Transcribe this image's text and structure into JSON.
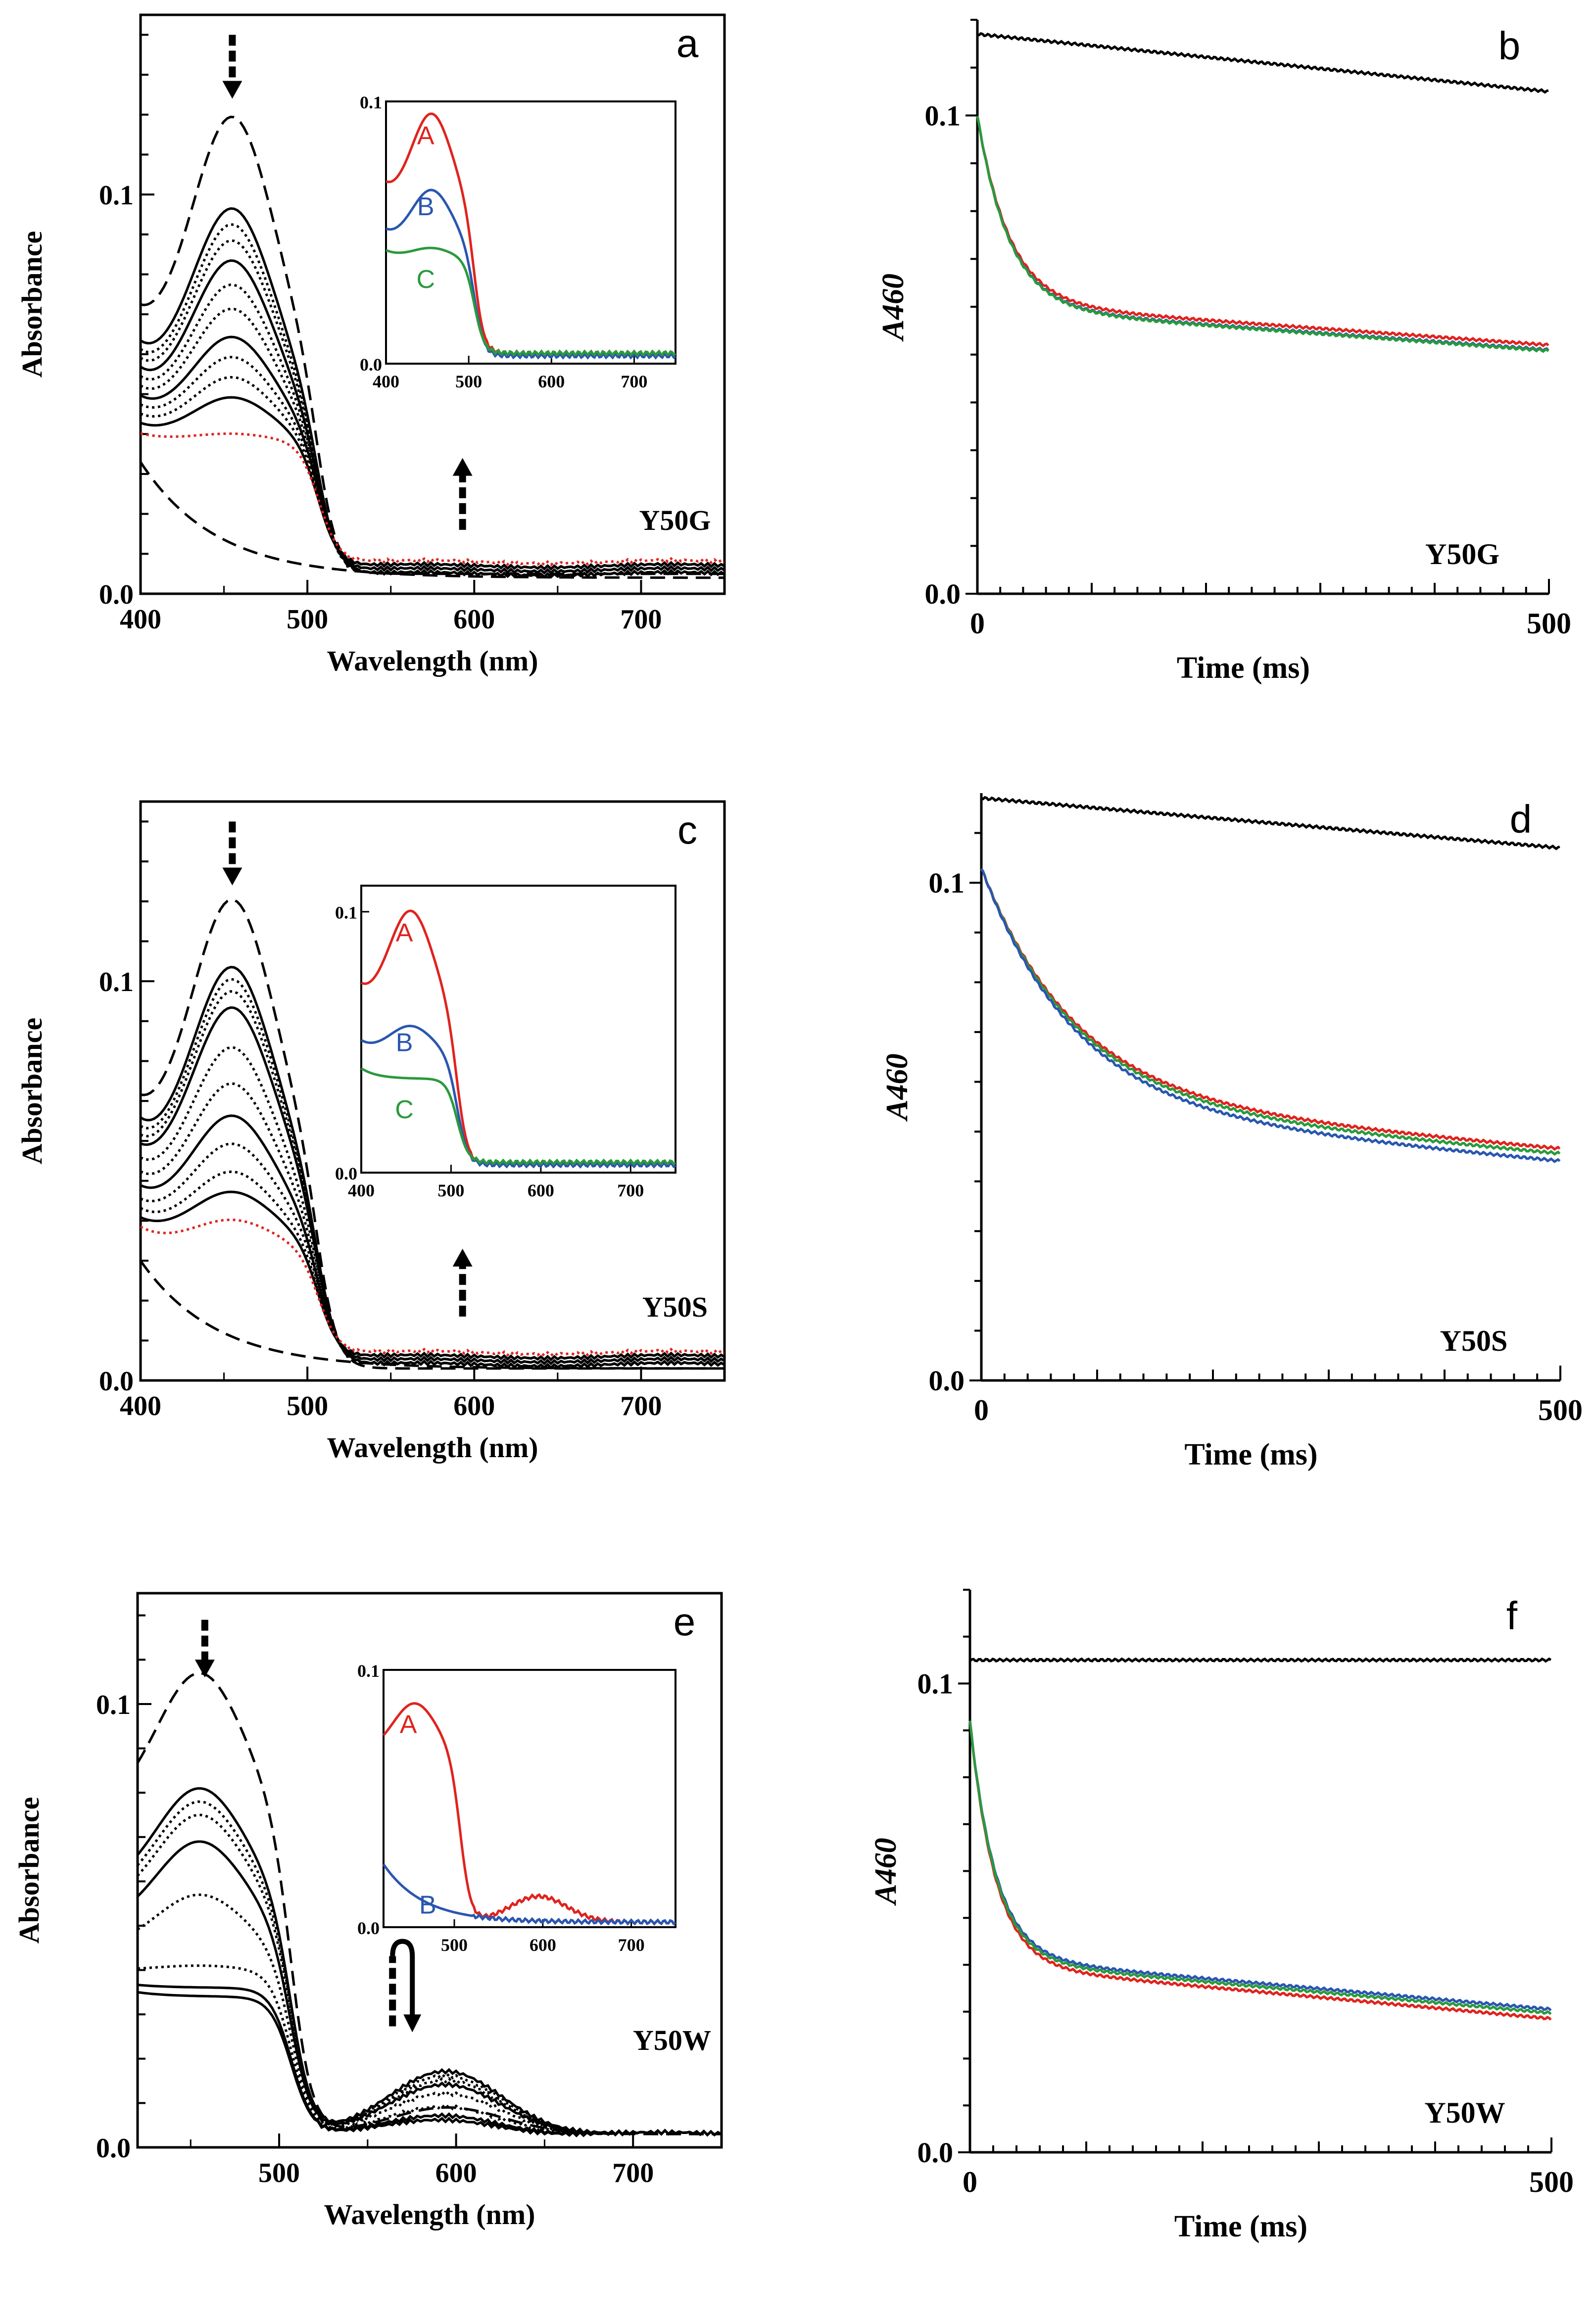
{
  "colors": {
    "axis": "#000000",
    "A": "#e0231e",
    "B": "#2a56b0",
    "C": "#2a9a3c",
    "black": "#000000",
    "red_dotted": "#e0231e"
  },
  "chart_data": [
    {
      "id": "a",
      "type": "line",
      "panel_label": "a",
      "mutant": "Y50G",
      "title": "",
      "xlabel": "Wavelength (nm)",
      "ylabel": "Absorbance",
      "xlim": [
        400,
        750
      ],
      "ylim": [
        0,
        0.145
      ],
      "x_ticks": [
        "400",
        "500",
        "600",
        "700"
      ],
      "y_ticks": [
        "0.0",
        "0.1"
      ],
      "arrows": [
        {
          "x": 455,
          "direction": "down",
          "y_from": 0.14,
          "y_to": 0.124
        },
        {
          "x": 593,
          "direction": "up",
          "y_from": 0.016,
          "y_to": 0.034
        }
      ],
      "series": [
        {
          "name": "initial (dashed)",
          "style": "dashed",
          "peak": 0.119,
          "base400": 0.068,
          "dip": 0.058,
          "tail": 0.005
        },
        {
          "name": "final (dashed)",
          "style": "dashed",
          "decay": true,
          "start": 0.033,
          "tail": 0.004
        },
        {
          "name": "trace 1",
          "style": "solid",
          "peak": 0.096,
          "base400": 0.06,
          "dip": 0.049,
          "tail": 0.005
        },
        {
          "name": "trace 2",
          "style": "dotted",
          "peak": 0.092,
          "base400": 0.058,
          "dip": 0.047,
          "tail": 0.005
        },
        {
          "name": "trace 3",
          "style": "dotted",
          "peak": 0.088,
          "base400": 0.056,
          "dip": 0.046,
          "tail": 0.005
        },
        {
          "name": "trace 4",
          "style": "solid",
          "peak": 0.083,
          "base400": 0.054,
          "dip": 0.044,
          "tail": 0.006
        },
        {
          "name": "trace 5",
          "style": "dotted",
          "peak": 0.077,
          "base400": 0.052,
          "dip": 0.043,
          "tail": 0.006
        },
        {
          "name": "trace 6",
          "style": "dotted",
          "peak": 0.071,
          "base400": 0.05,
          "dip": 0.042,
          "tail": 0.006
        },
        {
          "name": "trace 7",
          "style": "solid",
          "peak": 0.064,
          "base400": 0.048,
          "dip": 0.041,
          "tail": 0.007
        },
        {
          "name": "trace 8",
          "style": "dotted",
          "peak": 0.059,
          "base400": 0.046,
          "dip": 0.04,
          "tail": 0.007
        },
        {
          "name": "trace 9",
          "style": "dotted",
          "peak": 0.054,
          "base400": 0.044,
          "dip": 0.039,
          "tail": 0.007
        },
        {
          "name": "trace 10",
          "style": "solid",
          "peak": 0.049,
          "base400": 0.042,
          "dip": 0.038,
          "tail": 0.007
        },
        {
          "name": "trace 11 (red)",
          "style": "dotted-red",
          "peak": 0.04,
          "base400": 0.04,
          "dip": 0.038,
          "tail": 0.008
        }
      ],
      "inset": {
        "xlim": [
          400,
          750
        ],
        "ylim": [
          0,
          0.1
        ],
        "x_ticks": [
          "400",
          "500",
          "600",
          "700"
        ],
        "y_ticks": [
          "0.0",
          "0.1"
        ],
        "series": [
          {
            "name": "A",
            "label": "A",
            "color": "#e0231e",
            "peak": 0.095,
            "base400": 0.067,
            "dip": 0.06,
            "tail": 0.004
          },
          {
            "name": "B",
            "label": "B",
            "color": "#2a56b0",
            "peak": 0.066,
            "base400": 0.05,
            "dip": 0.045,
            "tail": 0.003
          },
          {
            "name": "C",
            "label": "C",
            "color": "#2a9a3c",
            "peak": 0.044,
            "base400": 0.043,
            "dip": 0.04,
            "tail": 0.004
          }
        ]
      }
    },
    {
      "id": "b",
      "type": "line",
      "panel_label": "b",
      "mutant": "Y50G",
      "xlabel": "Time (ms)",
      "ylabel": "A460",
      "xlim": [
        0,
        500
      ],
      "ylim": [
        0,
        0.12
      ],
      "x_ticks": [
        "0",
        "500"
      ],
      "y_ticks": [
        "0.0",
        "0.1"
      ],
      "series": [
        {
          "name": "black",
          "color": "#000000",
          "start": 0.117,
          "end": 0.105
        },
        {
          "name": "red",
          "color": "#e0231e",
          "start": 0.1,
          "end": 0.052,
          "fast_tau": 28
        },
        {
          "name": "blue",
          "color": "#2a56b0",
          "start": 0.1,
          "end": 0.051,
          "fast_tau": 28
        },
        {
          "name": "green",
          "color": "#2a9a3c",
          "start": 0.1,
          "end": 0.0508,
          "fast_tau": 28
        }
      ]
    },
    {
      "id": "c",
      "type": "line",
      "panel_label": "c",
      "mutant": "Y50S",
      "title": "",
      "xlabel": "Wavelength (nm)",
      "ylabel": "Absorbance",
      "xlim": [
        400,
        750
      ],
      "ylim": [
        0,
        0.145
      ],
      "x_ticks": [
        "400",
        "500",
        "600",
        "700"
      ],
      "y_ticks": [
        "0.0",
        "0.1"
      ],
      "arrows": [
        {
          "x": 455,
          "direction": "down",
          "y_from": 0.14,
          "y_to": 0.124
        },
        {
          "x": 593,
          "direction": "up",
          "y_from": 0.016,
          "y_to": 0.033
        }
      ],
      "series": [
        {
          "name": "initial (dashed)",
          "style": "dashed",
          "peak": 0.12,
          "base400": 0.067,
          "dip": 0.057,
          "tail": 0.003
        },
        {
          "name": "final (dashed)",
          "style": "dashed",
          "decay": true,
          "start": 0.03,
          "tail": 0.003
        },
        {
          "name": "trace 1",
          "style": "solid",
          "peak": 0.103,
          "base400": 0.062,
          "dip": 0.05,
          "tail": 0.004
        },
        {
          "name": "trace 2",
          "style": "dotted",
          "peak": 0.1,
          "base400": 0.06,
          "dip": 0.049,
          "tail": 0.004
        },
        {
          "name": "trace 3",
          "style": "dotted",
          "peak": 0.097,
          "base400": 0.058,
          "dip": 0.048,
          "tail": 0.004
        },
        {
          "name": "trace 4",
          "style": "solid",
          "peak": 0.093,
          "base400": 0.056,
          "dip": 0.047,
          "tail": 0.004
        },
        {
          "name": "trace 5",
          "style": "dotted",
          "peak": 0.083,
          "base400": 0.053,
          "dip": 0.044,
          "tail": 0.005
        },
        {
          "name": "trace 6",
          "style": "dotted",
          "peak": 0.074,
          "base400": 0.05,
          "dip": 0.042,
          "tail": 0.005
        },
        {
          "name": "trace 7",
          "style": "solid",
          "peak": 0.066,
          "base400": 0.047,
          "dip": 0.04,
          "tail": 0.005
        },
        {
          "name": "trace 8",
          "style": "dotted",
          "peak": 0.059,
          "base400": 0.044,
          "dip": 0.038,
          "tail": 0.006
        },
        {
          "name": "trace 9",
          "style": "dotted",
          "peak": 0.052,
          "base400": 0.042,
          "dip": 0.036,
          "tail": 0.006
        },
        {
          "name": "trace 10",
          "style": "solid",
          "peak": 0.047,
          "base400": 0.04,
          "dip": 0.035,
          "tail": 0.006
        },
        {
          "name": "trace 11 (red)",
          "style": "dotted-red",
          "peak": 0.04,
          "base400": 0.038,
          "dip": 0.033,
          "tail": 0.007
        }
      ],
      "inset": {
        "xlim": [
          400,
          750
        ],
        "ylim": [
          0,
          0.11
        ],
        "x_ticks": [
          "400",
          "500",
          "600",
          "700"
        ],
        "y_ticks": [
          "0.0",
          "0.1"
        ],
        "series": [
          {
            "name": "A",
            "label": "A",
            "color": "#e0231e",
            "peak": 0.1,
            "base400": 0.07,
            "dip": 0.062,
            "tail": 0.003
          },
          {
            "name": "B",
            "label": "B",
            "color": "#2a56b0",
            "peak": 0.056,
            "base400": 0.05,
            "dip": 0.045,
            "tail": 0.003
          },
          {
            "name": "C",
            "label": "C",
            "color": "#2a9a3c",
            "peak": 0.036,
            "base400": 0.04,
            "dip": 0.036,
            "tail": 0.004
          }
        ]
      }
    },
    {
      "id": "d",
      "type": "line",
      "panel_label": "d",
      "mutant": "Y50S",
      "xlabel": "Time (ms)",
      "ylabel": "A460",
      "xlim": [
        0,
        500
      ],
      "ylim": [
        0,
        0.118
      ],
      "x_ticks": [
        "0",
        "500"
      ],
      "y_ticks": [
        "0.0",
        "0.1"
      ],
      "series": [
        {
          "name": "black",
          "color": "#000000",
          "start": 0.117,
          "end": 0.107
        },
        {
          "name": "red",
          "color": "#e0231e",
          "start": 0.103,
          "end": 0.0465,
          "fast_tau": 80
        },
        {
          "name": "green",
          "color": "#2a9a3c",
          "start": 0.103,
          "end": 0.0455,
          "fast_tau": 80
        },
        {
          "name": "blue",
          "color": "#2a56b0",
          "start": 0.103,
          "end": 0.044,
          "fast_tau": 80
        }
      ]
    },
    {
      "id": "e",
      "type": "line",
      "panel_label": "e",
      "mutant": "Y50W",
      "title": "",
      "xlabel": "Wavelength (nm)",
      "ylabel": "Absorbance",
      "xlim": [
        420,
        750
      ],
      "ylim": [
        0,
        0.125
      ],
      "x_ticks": [
        "500",
        "600",
        "700"
      ],
      "y_ticks": [
        "0.0",
        "0.1"
      ],
      "arrows": [
        {
          "x": 458,
          "direction": "down",
          "y_from": 0.119,
          "y_to": 0.106
        },
        {
          "x": 568,
          "direction": "updown",
          "y_from": 0.034,
          "y_to": 0.042
        }
      ],
      "series": [
        {
          "name": "initial (dashed)",
          "style": "dashed",
          "peak": 0.107,
          "base400": 0.076,
          "dip": 0.076,
          "tail": 0.003,
          "shoulder": 0.006
        },
        {
          "name": "trace 1",
          "style": "solid",
          "peak": 0.081,
          "base400": 0.058,
          "dip": 0.058,
          "tail": 0.003,
          "shoulder": 0.014
        },
        {
          "name": "trace 2",
          "style": "dotted",
          "peak": 0.078,
          "base400": 0.056,
          "dip": 0.056,
          "tail": 0.003,
          "shoulder": 0.013
        },
        {
          "name": "trace 3",
          "style": "dotted",
          "peak": 0.075,
          "base400": 0.054,
          "dip": 0.054,
          "tail": 0.003,
          "shoulder": 0.012
        },
        {
          "name": "trace 4",
          "style": "solid",
          "peak": 0.069,
          "base400": 0.05,
          "dip": 0.05,
          "tail": 0.003,
          "shoulder": 0.011
        },
        {
          "name": "trace 5",
          "style": "dotted",
          "peak": 0.057,
          "base400": 0.045,
          "dip": 0.045,
          "tail": 0.003,
          "shoulder": 0.009
        },
        {
          "name": "trace 6",
          "style": "dotted",
          "peak": 0.041,
          "base400": 0.04,
          "dip": 0.04,
          "tail": 0.003,
          "shoulder": 0.006
        },
        {
          "name": "trace 7",
          "style": "solid",
          "peak": 0.036,
          "base400": 0.038,
          "dip": 0.036,
          "tail": 0.003,
          "shoulder": 0.004
        },
        {
          "name": "trace 8",
          "style": "solid",
          "peak": 0.034,
          "base400": 0.037,
          "dip": 0.034,
          "tail": 0.003,
          "shoulder": 0.003
        }
      ],
      "inset": {
        "xlim": [
          420,
          750
        ],
        "ylim": [
          0,
          0.1
        ],
        "x_ticks": [
          "500",
          "600",
          "700"
        ],
        "y_ticks": [
          "0.0",
          "0.1"
        ],
        "series": [
          {
            "name": "A",
            "label": "A",
            "color": "#e0231e",
            "peak": 0.087,
            "base400": 0.068,
            "dip": 0.068,
            "tail": 0.002,
            "shoulder": 0.01
          },
          {
            "name": "B",
            "label": "B",
            "color": "#2a56b0",
            "decay": true,
            "start": 0.037,
            "tail": 0.002
          }
        ]
      }
    },
    {
      "id": "f",
      "type": "line",
      "panel_label": "f",
      "mutant": "Y50W",
      "xlabel": "Time (ms)",
      "ylabel": "A460",
      "xlim": [
        0,
        500
      ],
      "ylim": [
        0,
        0.12
      ],
      "x_ticks": [
        "0",
        "500"
      ],
      "y_ticks": [
        "0.0",
        "0.1"
      ],
      "series": [
        {
          "name": "black",
          "color": "#000000",
          "start": 0.105,
          "end": 0.105
        },
        {
          "name": "red",
          "color": "#e0231e",
          "start": 0.092,
          "end": 0.0285,
          "fast_tau": 22
        },
        {
          "name": "blue",
          "color": "#2a56b0",
          "start": 0.092,
          "end": 0.0305,
          "fast_tau": 22
        },
        {
          "name": "green",
          "color": "#2a9a3c",
          "start": 0.092,
          "end": 0.0297,
          "fast_tau": 22
        }
      ]
    }
  ]
}
